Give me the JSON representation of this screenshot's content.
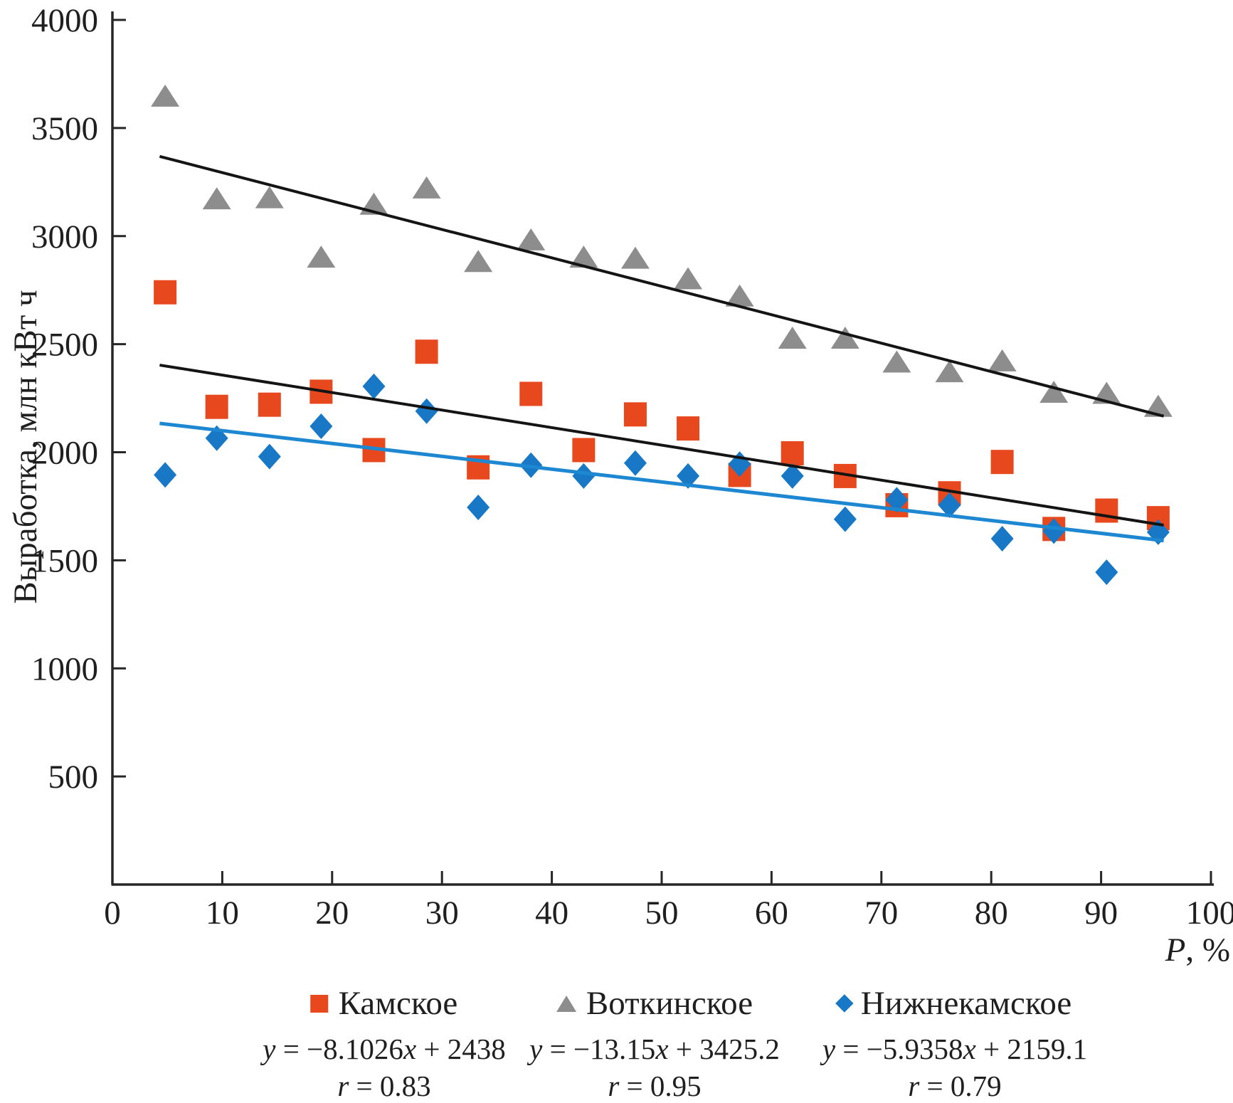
{
  "figure": {
    "y_axis_title": "Выработка, млн кВт ч",
    "x_axis_title": "P, %"
  },
  "chart_data": {
    "type": "scatter",
    "title": "",
    "xlabel": "P, %",
    "ylabel": "Выработка, млн кВт ч",
    "grid": false,
    "legend_position": "bottom",
    "x_axis": {
      "min": 0,
      "max": 100,
      "tick_step": 10,
      "tick_labels": [
        "0",
        "10",
        "20",
        "30",
        "40",
        "50",
        "60",
        "70",
        "80",
        "90",
        "100"
      ]
    },
    "y_axis": {
      "min": 0,
      "max": 4000,
      "tick_step": 500,
      "tick_labels": [
        "500",
        "1000",
        "1500",
        "2000",
        "2500",
        "3000",
        "3500",
        "4000"
      ]
    },
    "x": [
      4.8,
      9.5,
      14.3,
      19.0,
      23.8,
      28.6,
      33.3,
      38.1,
      42.9,
      47.6,
      52.4,
      57.1,
      61.9,
      66.7,
      71.4,
      76.2,
      81.0,
      85.7,
      90.5,
      95.2
    ],
    "series": [
      {
        "name": "Камское",
        "marker": "square",
        "color": "#e8481d",
        "trend_color": "#141414",
        "values": [
          2740,
          2210,
          2220,
          2280,
          2010,
          2465,
          1930,
          2270,
          2010,
          2175,
          2110,
          1895,
          1995,
          1890,
          1755,
          1810,
          1955,
          1645,
          1730,
          1695
        ],
        "trendline": {
          "slope": -8.1026,
          "intercept": 2438,
          "equation": "y = −8.1026x + 2438",
          "r": "r = 0.83"
        }
      },
      {
        "name": "Воткинское",
        "marker": "triangle",
        "color": "#8d8d8d",
        "trend_color": "#141414",
        "values": [
          3645,
          3170,
          3175,
          2900,
          3145,
          3220,
          2880,
          2980,
          2900,
          2895,
          2800,
          2720,
          2525,
          2525,
          2415,
          2370,
          2420,
          2275,
          2270,
          2210
        ],
        "trendline": {
          "slope": -13.15,
          "intercept": 3425.2,
          "equation": "y = −13.15x + 3425.2",
          "r": "r = 0.95"
        }
      },
      {
        "name": "Нижнекамское",
        "marker": "diamond",
        "color": "#1878c6",
        "trend_color": "#1e87d2",
        "values": [
          1895,
          2065,
          1980,
          2120,
          2305,
          2190,
          1745,
          1940,
          1890,
          1950,
          1890,
          1945,
          1890,
          1690,
          1780,
          1755,
          1600,
          1635,
          1445,
          1630
        ],
        "trendline": {
          "slope": -5.9358,
          "intercept": 2159.1,
          "equation": "y = −5.9358x + 2159.1",
          "r": "r = 0.79"
        }
      }
    ]
  }
}
